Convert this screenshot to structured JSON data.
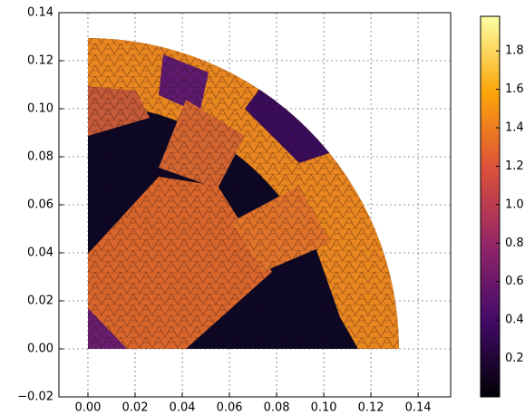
{
  "chart_data": {
    "type": "tripcolor",
    "xlim": [
      -0.0123,
      0.1538
    ],
    "ylim": [
      -0.02,
      0.14
    ],
    "xticks": [
      {
        "value": 0,
        "label": "0.00"
      },
      0.02,
      0.04,
      0.06,
      0.08,
      {
        "value": 0.1,
        "label": "0.10"
      },
      0.12,
      0.14
    ],
    "yticks": [
      {
        "value": -0.02,
        "label": "−0.02"
      },
      {
        "value": 0,
        "label": "0.00"
      },
      0.02,
      0.04,
      0.06,
      0.08,
      {
        "value": 0.1,
        "label": "0.10"
      },
      0.12,
      0.14
    ],
    "grid": true,
    "colorbar": {
      "colormap": "inferno",
      "clim": [
        0,
        1.98
      ],
      "ticks": [
        0.2,
        0.4,
        0.6,
        0.8,
        {
          "value": 1,
          "label": "1.0"
        },
        1.2,
        1.4,
        1.6,
        1.8
      ]
    }
  }
}
